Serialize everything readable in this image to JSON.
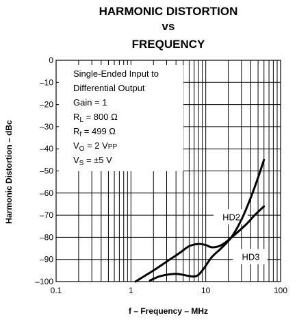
{
  "chart_data": {
    "type": "line",
    "title_lines": [
      "HARMONIC DISTORTION",
      "vs",
      "FREQUENCY"
    ],
    "xlabel": "f – Frequency – MHz",
    "ylabel": "Harmonic Distortion – dBc",
    "xscale": "log",
    "xlim": [
      0.1,
      100
    ],
    "ylim": [
      -100,
      0
    ],
    "grid": true,
    "x_ticks": [
      {
        "value": 0.1,
        "label": "0.1"
      },
      {
        "value": 1,
        "label": "1"
      },
      {
        "value": 10,
        "label": "10"
      },
      {
        "value": 100,
        "label": "100"
      }
    ],
    "y_ticks": [
      {
        "value": 0,
        "label": "0"
      },
      {
        "value": -10,
        "label": "–10"
      },
      {
        "value": -20,
        "label": "–20"
      },
      {
        "value": -30,
        "label": "–30"
      },
      {
        "value": -40,
        "label": "–40"
      },
      {
        "value": -50,
        "label": "–50"
      },
      {
        "value": -60,
        "label": "–60"
      },
      {
        "value": -70,
        "label": "–70"
      },
      {
        "value": -80,
        "label": "–80"
      },
      {
        "value": -90,
        "label": "–90"
      },
      {
        "value": -100,
        "label": "–100"
      }
    ],
    "conditions": {
      "line1": "Single-Ended Input to",
      "line2": "Differential Output",
      "gain": "Gain = 1",
      "rl": {
        "main": "R",
        "sub": "L",
        "rest": " = 800 Ω"
      },
      "rf": {
        "main": "R",
        "sub": "f",
        "rest": " = 499 Ω"
      },
      "vo": {
        "main": "V",
        "sub": "O",
        "rest": " = 2 V",
        "sub2": "PP"
      },
      "vs": {
        "main": "V",
        "sub": "S",
        "rest": " = ±5 V"
      }
    },
    "series": [
      {
        "name": "HD2",
        "points": [
          [
            1.8,
            -99.5
          ],
          [
            2.5,
            -97.5
          ],
          [
            4,
            -96.5
          ],
          [
            6,
            -97.5
          ],
          [
            7.5,
            -97.5
          ],
          [
            9,
            -95
          ],
          [
            12,
            -89
          ],
          [
            16,
            -85
          ],
          [
            22,
            -80
          ],
          [
            30,
            -72
          ],
          [
            40,
            -62
          ],
          [
            50,
            -53
          ],
          [
            60,
            -45
          ]
        ]
      },
      {
        "name": "HD3",
        "points": [
          [
            1.15,
            -100
          ],
          [
            2,
            -95
          ],
          [
            3,
            -91
          ],
          [
            4.5,
            -87
          ],
          [
            6,
            -84
          ],
          [
            8,
            -83
          ],
          [
            10,
            -83.5
          ],
          [
            12,
            -84.5
          ],
          [
            15,
            -84
          ],
          [
            18,
            -82.5
          ],
          [
            25,
            -78.5
          ],
          [
            35,
            -74
          ],
          [
            45,
            -70
          ],
          [
            60,
            -66
          ]
        ]
      }
    ],
    "series_labels": [
      {
        "text": "HD2",
        "at": [
          22,
          -71
        ]
      },
      {
        "text": "HD3",
        "at": [
          40,
          -89
        ]
      }
    ],
    "colors": {
      "line": "#000000",
      "grid": "#000000",
      "background": "#ffffff"
    }
  }
}
